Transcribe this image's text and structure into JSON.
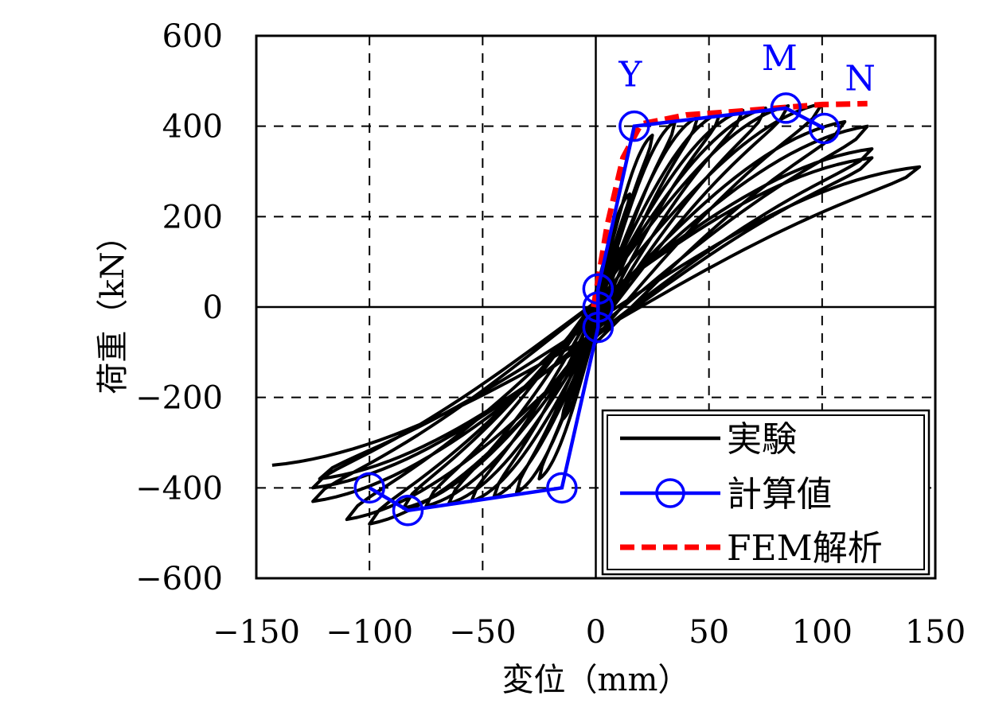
{
  "chart_data": {
    "type": "line",
    "xlabel": "変位（mm）",
    "ylabel": "荷重（kN）",
    "xlim": [
      -150,
      150
    ],
    "ylim": [
      -600,
      600
    ],
    "xticks": [
      -150,
      -100,
      -50,
      0,
      50,
      100,
      150
    ],
    "yticks": [
      -600,
      -400,
      -200,
      0,
      200,
      400,
      600
    ],
    "xtick_labels": [
      "−150",
      "−100",
      "−50",
      "0",
      "50",
      "100",
      "150"
    ],
    "ytick_labels": [
      "−600",
      "−400",
      "−200",
      "0",
      "200",
      "400",
      "600"
    ],
    "grid": "dashed",
    "legend_position": "bottom-right",
    "colors": {
      "experiment": "#000000",
      "calculated": "#0000ff",
      "fem": "#ff0000"
    },
    "series": [
      {
        "name": "実験",
        "style": "solid",
        "cycle_peaks": [
          [
            5,
            60
          ],
          [
            -5,
            -60
          ],
          [
            10,
            130
          ],
          [
            -10,
            -130
          ],
          [
            15,
            250
          ],
          [
            -15,
            -250
          ],
          [
            25,
            380
          ],
          [
            -25,
            -380
          ],
          [
            35,
            410
          ],
          [
            -35,
            -410
          ],
          [
            45,
            420
          ],
          [
            -45,
            -420
          ],
          [
            55,
            430
          ],
          [
            -55,
            -430
          ],
          [
            65,
            435
          ],
          [
            -65,
            -435
          ],
          [
            75,
            440
          ],
          [
            -75,
            -440
          ],
          [
            85,
            445
          ],
          [
            -85,
            -445
          ],
          [
            100,
            450
          ],
          [
            -100,
            -480
          ],
          [
            110,
            410
          ],
          [
            -110,
            -470
          ],
          [
            120,
            400
          ],
          [
            -125,
            -430
          ],
          [
            122,
            350
          ],
          [
            -125,
            -400
          ],
          [
            122,
            330
          ],
          [
            -122,
            -380
          ],
          [
            143,
            310
          ],
          [
            -143,
            -350
          ]
        ]
      },
      {
        "name": "計算値",
        "style": "solid-with-circle-markers",
        "points": [
          [
            -100,
            -400
          ],
          [
            -83,
            -450
          ],
          [
            -15,
            -400
          ],
          [
            1,
            -45
          ],
          [
            1,
            0
          ],
          [
            1,
            40
          ],
          [
            17,
            400
          ],
          [
            84,
            440
          ],
          [
            101,
            395
          ]
        ]
      },
      {
        "name": "FEM解析",
        "style": "dashed",
        "points": [
          [
            -1,
            0
          ],
          [
            5,
            180
          ],
          [
            12,
            330
          ],
          [
            20,
            405
          ],
          [
            40,
            425
          ],
          [
            60,
            432
          ],
          [
            80,
            440
          ],
          [
            100,
            448
          ],
          [
            120,
            450
          ]
        ]
      }
    ],
    "annotations": [
      {
        "text": "Y",
        "x": 17,
        "y": 400
      },
      {
        "text": "M",
        "x": 84,
        "y": 440
      },
      {
        "text": "N",
        "x": 101,
        "y": 395
      }
    ]
  }
}
